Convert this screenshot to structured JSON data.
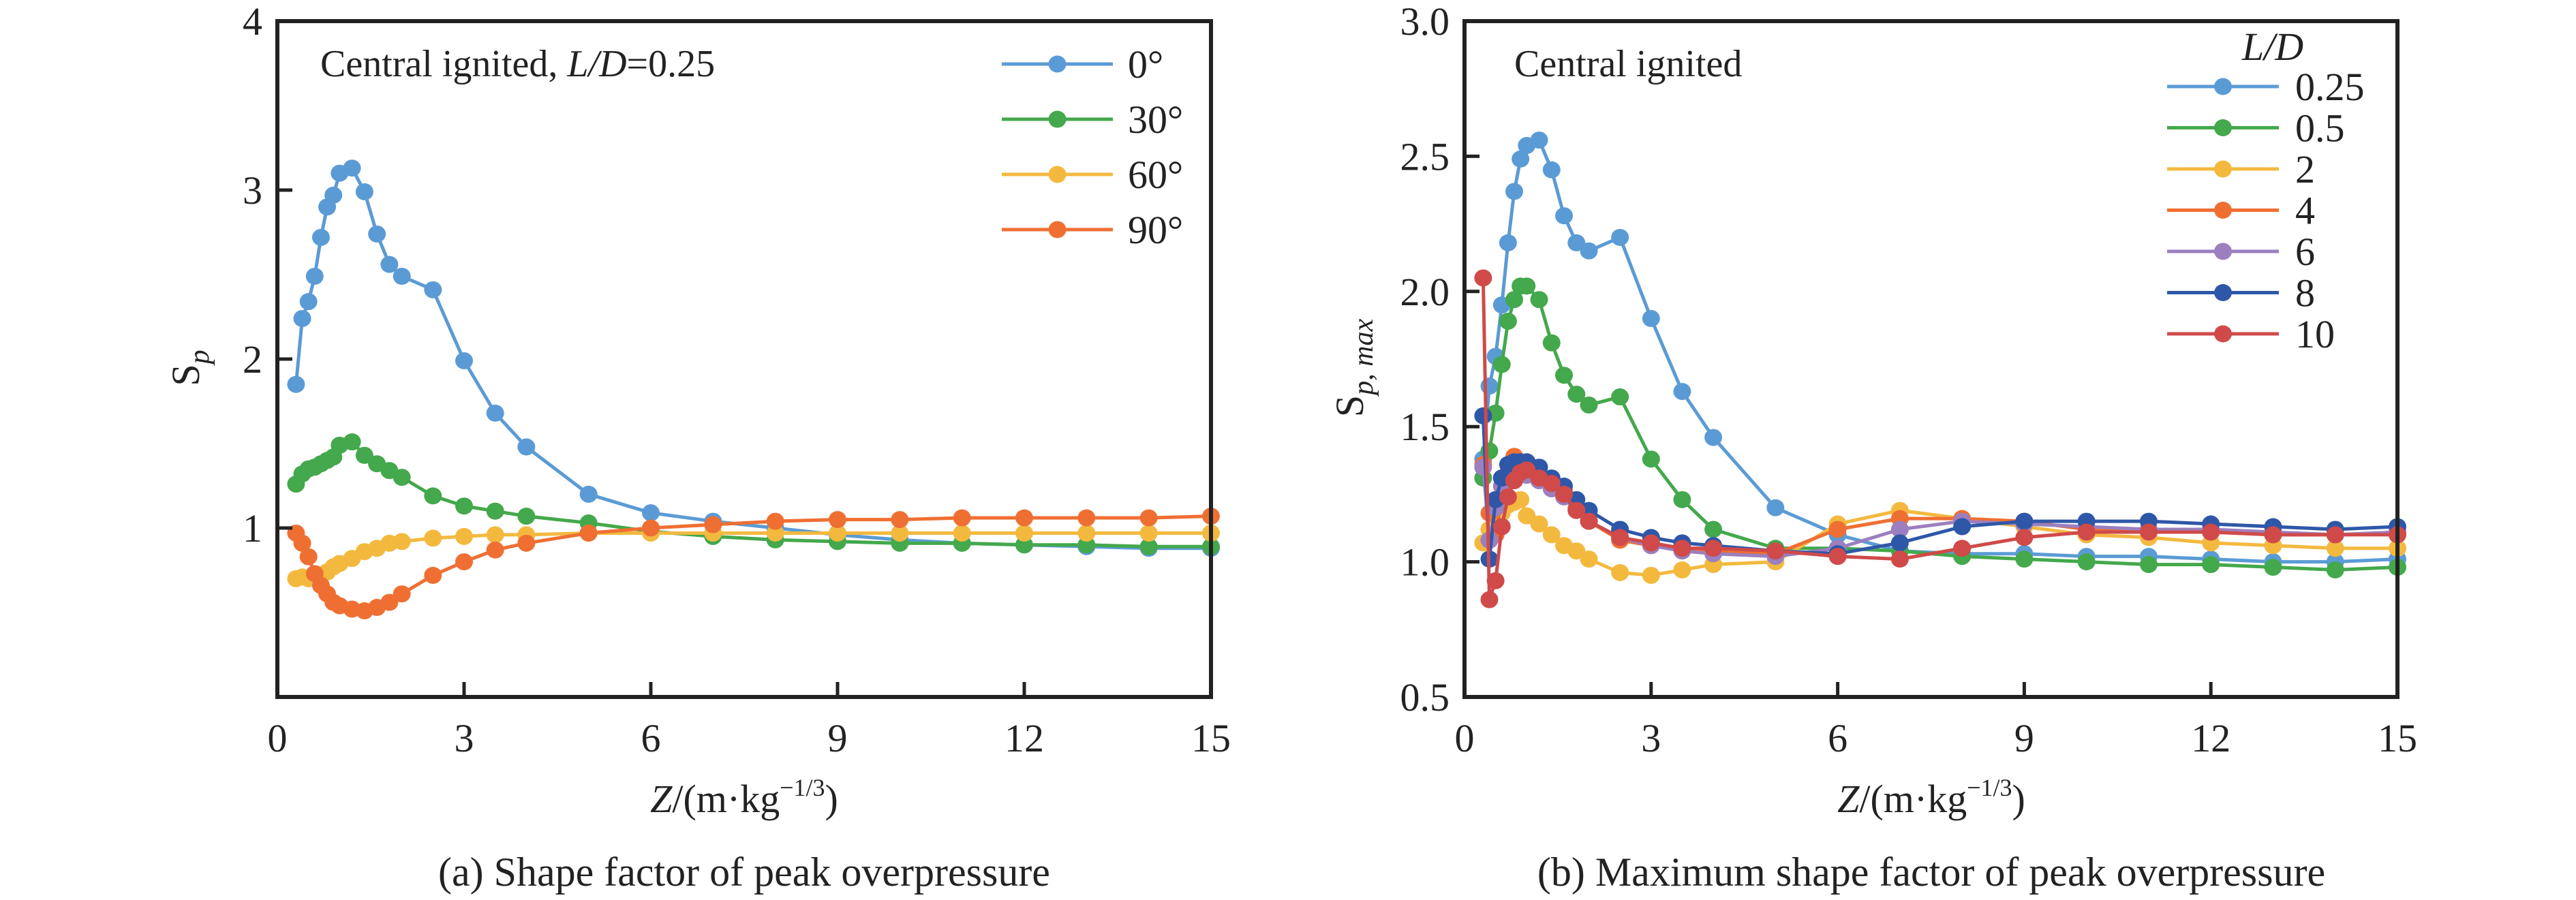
{
  "figure": {
    "panels": [
      {
        "id": "a",
        "caption": "(a) Shape factor of peak overpressure",
        "annotation": {
          "prefix": "Central ignited, ",
          "italic": "L/D",
          "suffix": "=0.25"
        },
        "ylabel": {
          "main": "S",
          "sub": "p"
        },
        "xlabel": {
          "italic": "Z",
          "rest": "/(m·kg",
          "sup": "−1/3",
          "close": ")"
        },
        "legend_title": "",
        "legend_position": "top-right"
      },
      {
        "id": "b",
        "caption": "(b) Maximum shape factor of peak overpressure",
        "annotation": {
          "prefix": "Central ignited",
          "italic": "",
          "suffix": ""
        },
        "ylabel": {
          "main": "S",
          "sub": "p, max"
        },
        "xlabel": {
          "italic": "Z",
          "rest": "/(m·kg",
          "sup": "−1/3",
          "close": ")"
        },
        "legend_title": "L/D",
        "legend_position": "top-right"
      }
    ]
  },
  "chart_data": [
    {
      "type": "line",
      "title": "(a) Shape factor of peak overpressure",
      "annotation": "Central ignited, L/D=0.25",
      "xlabel": "Z/(m·kg^-1/3)",
      "ylabel": "S_p",
      "xlim": [
        0,
        15
      ],
      "ylim": [
        0,
        4
      ],
      "xticks": [
        0,
        3,
        6,
        9,
        12,
        15
      ],
      "xtick_labels": [
        "0",
        "3",
        "6",
        "9",
        "12",
        "15"
      ],
      "yticks": [
        1,
        2,
        3,
        4
      ],
      "ytick_labels": [
        "1",
        "2",
        "3",
        "4"
      ],
      "grid": false,
      "legend_position": "top-right",
      "x": [
        0.3,
        0.4,
        0.5,
        0.6,
        0.7,
        0.8,
        0.9,
        1.0,
        1.2,
        1.4,
        1.6,
        1.8,
        2.0,
        2.5,
        3.0,
        3.5,
        4.0,
        5,
        6,
        7,
        8,
        9,
        10,
        11,
        12,
        13,
        14,
        15
      ],
      "series": [
        {
          "name": "0°",
          "color": "#5b9bd5",
          "values": [
            1.85,
            2.24,
            2.34,
            2.49,
            2.72,
            2.9,
            2.97,
            3.1,
            3.13,
            2.99,
            2.74,
            2.56,
            2.49,
            2.41,
            1.99,
            1.68,
            1.48,
            1.2,
            1.09,
            1.04,
            1.0,
            0.96,
            0.93,
            0.91,
            0.9,
            0.89,
            0.88,
            0.88
          ]
        },
        {
          "name": "30°",
          "color": "#44a84c",
          "values": [
            1.26,
            1.32,
            1.35,
            1.36,
            1.38,
            1.4,
            1.42,
            1.49,
            1.51,
            1.43,
            1.38,
            1.34,
            1.3,
            1.19,
            1.13,
            1.1,
            1.07,
            1.03,
            0.98,
            0.95,
            0.93,
            0.92,
            0.91,
            0.91,
            0.9,
            0.9,
            0.89,
            0.89
          ]
        },
        {
          "name": "60°",
          "color": "#f3b93f",
          "values": [
            0.7,
            0.71,
            0.7,
            0.71,
            0.72,
            0.74,
            0.77,
            0.79,
            0.82,
            0.86,
            0.88,
            0.91,
            0.92,
            0.94,
            0.95,
            0.96,
            0.96,
            0.97,
            0.97,
            0.97,
            0.97,
            0.97,
            0.97,
            0.97,
            0.97,
            0.97,
            0.97,
            0.97
          ]
        },
        {
          "name": "90°",
          "color": "#ef6f33",
          "values": [
            0.97,
            0.91,
            0.83,
            0.73,
            0.66,
            0.61,
            0.56,
            0.54,
            0.52,
            0.51,
            0.53,
            0.56,
            0.61,
            0.72,
            0.8,
            0.87,
            0.91,
            0.97,
            1.0,
            1.02,
            1.04,
            1.05,
            1.05,
            1.06,
            1.06,
            1.06,
            1.06,
            1.07
          ]
        }
      ]
    },
    {
      "type": "line",
      "title": "(b) Maximum shape factor of peak overpressure",
      "annotation": "Central ignited",
      "xlabel": "Z/(m·kg^-1/3)",
      "ylabel": "S_p, max",
      "xlim": [
        0,
        15
      ],
      "ylim": [
        0.5,
        3.0
      ],
      "xticks": [
        0,
        3,
        6,
        9,
        12,
        15
      ],
      "xtick_labels": [
        "0",
        "3",
        "6",
        "9",
        "12",
        "15"
      ],
      "yticks": [
        0.5,
        1.0,
        1.5,
        2.0,
        2.5,
        3.0
      ],
      "ytick_labels": [
        "0.5",
        "1.0",
        "1.5",
        "2.0",
        "2.5",
        "3.0"
      ],
      "grid": false,
      "legend_title": "L/D",
      "legend_position": "top-right",
      "x": [
        0.3,
        0.4,
        0.5,
        0.6,
        0.7,
        0.8,
        0.9,
        1.0,
        1.2,
        1.4,
        1.6,
        1.8,
        2.0,
        2.5,
        3.0,
        3.5,
        4.0,
        5,
        6,
        7,
        8,
        9,
        10,
        11,
        12,
        13,
        14,
        15
      ],
      "series": [
        {
          "name": "0.25",
          "color": "#5b9bd5",
          "values": [
            1.38,
            1.65,
            1.76,
            1.95,
            2.18,
            2.37,
            2.49,
            2.54,
            2.56,
            2.45,
            2.28,
            2.18,
            2.15,
            2.2,
            1.9,
            1.63,
            1.46,
            1.2,
            1.1,
            1.04,
            1.03,
            1.03,
            1.02,
            1.02,
            1.01,
            1.0,
            1.0,
            1.01
          ]
        },
        {
          "name": "0.5",
          "color": "#44a84c",
          "values": [
            1.31,
            1.41,
            1.55,
            1.73,
            1.89,
            1.97,
            2.02,
            2.02,
            1.97,
            1.81,
            1.69,
            1.62,
            1.58,
            1.61,
            1.38,
            1.23,
            1.12,
            1.05,
            1.05,
            1.04,
            1.02,
            1.01,
            1.0,
            0.99,
            0.99,
            0.98,
            0.97,
            0.98
          ]
        },
        {
          "name": "2",
          "color": "#f3b93f",
          "values": [
            1.07,
            1.12,
            1.14,
            1.18,
            1.21,
            1.22,
            1.23,
            1.17,
            1.14,
            1.1,
            1.06,
            1.04,
            1.01,
            0.96,
            0.95,
            0.97,
            0.99,
            1.0,
            1.14,
            1.19,
            1.16,
            1.13,
            1.1,
            1.09,
            1.07,
            1.06,
            1.05,
            1.05
          ]
        },
        {
          "name": "4",
          "color": "#ef6f33",
          "values": [
            1.36,
            1.18,
            1.1,
            1.24,
            1.33,
            1.39,
            1.36,
            1.35,
            1.32,
            1.29,
            1.26,
            1.2,
            1.15,
            1.08,
            1.06,
            1.05,
            1.04,
            1.03,
            1.12,
            1.16,
            1.16,
            1.15,
            1.12,
            1.12,
            1.11,
            1.1,
            1.1,
            1.11
          ]
        },
        {
          "name": "6",
          "color": "#9b7fbf",
          "values": [
            1.35,
            1.08,
            1.2,
            1.28,
            1.33,
            1.35,
            1.34,
            1.32,
            1.3,
            1.27,
            1.24,
            1.19,
            1.15,
            1.09,
            1.06,
            1.04,
            1.03,
            1.02,
            1.05,
            1.12,
            1.15,
            1.14,
            1.13,
            1.12,
            1.12,
            1.11,
            1.1,
            1.11
          ]
        },
        {
          "name": "8",
          "color": "#2f57a8",
          "values": [
            1.54,
            1.01,
            1.23,
            1.31,
            1.36,
            1.37,
            1.37,
            1.37,
            1.35,
            1.31,
            1.28,
            1.23,
            1.19,
            1.12,
            1.09,
            1.07,
            1.06,
            1.04,
            1.03,
            1.07,
            1.13,
            1.15,
            1.15,
            1.15,
            1.14,
            1.13,
            1.12,
            1.13
          ]
        },
        {
          "name": "10",
          "color": "#d04a4a",
          "values": [
            2.05,
            0.86,
            0.93,
            1.13,
            1.24,
            1.3,
            1.33,
            1.34,
            1.31,
            1.29,
            1.25,
            1.19,
            1.15,
            1.09,
            1.07,
            1.05,
            1.05,
            1.04,
            1.02,
            1.01,
            1.05,
            1.09,
            1.11,
            1.11,
            1.11,
            1.1,
            1.1,
            1.1
          ]
        }
      ]
    }
  ]
}
